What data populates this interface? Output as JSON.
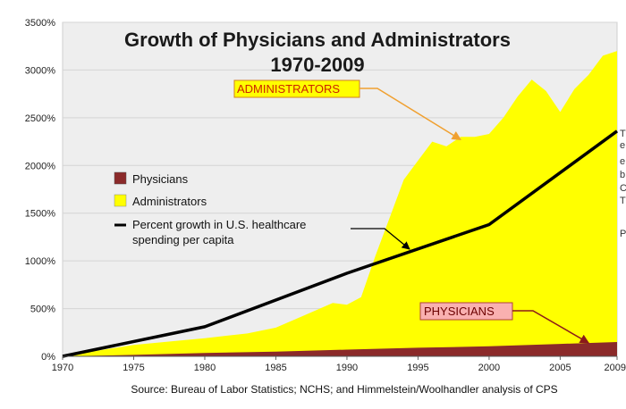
{
  "chart_data": {
    "type": "area",
    "title": "Growth of Physicians and Administrators",
    "subtitle": "1970-2009",
    "source": "Source: Bureau of Labor Statistics; NCHS; and Himmelstein/Woolhandler analysis of CPS",
    "xlabel": "",
    "ylabel": "",
    "xlim": [
      1970,
      2009
    ],
    "ylim": [
      0,
      3500
    ],
    "grid": true,
    "x_ticks": [
      "1970",
      "1975",
      "1980",
      "1985",
      "1990",
      "1995",
      "2000",
      "2005",
      "2009"
    ],
    "y_ticks": [
      "0%",
      "500%",
      "1000%",
      "1500%",
      "2000%",
      "2500%",
      "3000%",
      "3500%"
    ],
    "legend_position": "left",
    "series": [
      {
        "name": "Physicians",
        "kind": "area",
        "color": "#8b2a2a",
        "x": [
          1970,
          1975,
          1980,
          1985,
          1990,
          1995,
          2000,
          2005,
          2009
        ],
        "values": [
          0,
          15,
          35,
          50,
          70,
          90,
          105,
          130,
          150
        ]
      },
      {
        "name": "Administrators",
        "kind": "area",
        "color": "#ffff00",
        "x": [
          1970,
          1975,
          1980,
          1983,
          1985,
          1987,
          1989,
          1990,
          1991,
          1992,
          1993,
          1994,
          1995,
          1996,
          1997,
          1998,
          1999,
          2000,
          2001,
          2002,
          2003,
          2004,
          2005,
          2006,
          2007,
          2008,
          2009
        ],
        "values": [
          0,
          120,
          190,
          240,
          300,
          430,
          560,
          540,
          620,
          1050,
          1450,
          1850,
          2050,
          2250,
          2200,
          2300,
          2300,
          2330,
          2500,
          2720,
          2900,
          2780,
          2560,
          2800,
          2950,
          3150,
          3200
        ]
      },
      {
        "name": "Percent growth in U.S. healthcare spending per capita",
        "kind": "line",
        "color": "#000000",
        "x": [
          1970,
          1980,
          1990,
          2000,
          2009
        ],
        "values": [
          0,
          310,
          870,
          1380,
          2360
        ]
      }
    ],
    "legend": [
      {
        "label": "Physicians",
        "color": "#8b2a2a",
        "shape": "box"
      },
      {
        "label": "Administrators",
        "color": "#ffff00",
        "shape": "box"
      },
      {
        "label": "Percent growth in U.S. healthcare",
        "label2": "spending per capita",
        "color": "#000000",
        "shape": "line"
      }
    ],
    "annotations": [
      {
        "text": "ADMINISTRATORS",
        "text_color": "#cc2200",
        "box_fill": "#ffff00",
        "arrow_color": "#f0a030",
        "x": 1998,
        "y": 2270
      },
      {
        "text": "PHYSICIANS",
        "text_color": "#6b0000",
        "box_fill": "#f9b0b0",
        "arrow_color": "#8b1a1a",
        "x": 2007,
        "y": 140
      }
    ]
  },
  "edge_text": [
    "T",
    "e",
    "e",
    "b",
    "C",
    "T",
    "P"
  ]
}
